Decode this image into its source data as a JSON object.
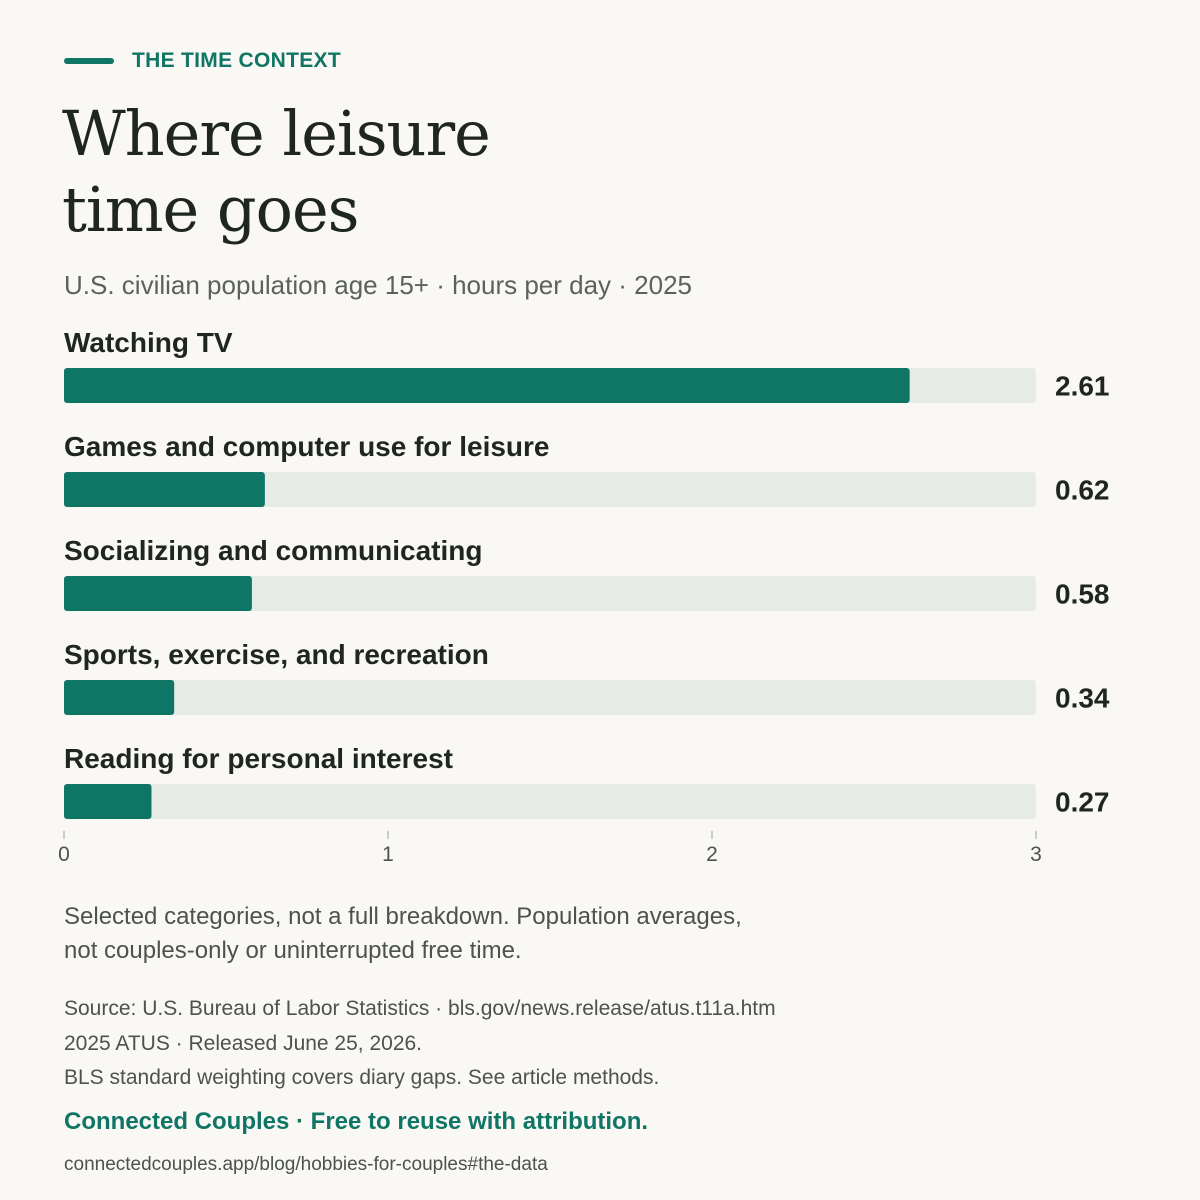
{
  "header": {
    "eyebrow": "THE TIME CONTEXT",
    "title_line1": "Where leisure",
    "title_line2": "time goes",
    "subtitle": "U.S. civilian population age 15+ · hours per day · 2025"
  },
  "colors": {
    "accent": "#0f7565",
    "track": "#e7ebe6",
    "background": "#f9f8f4",
    "text": "#1f2620",
    "muted": "#4c524d"
  },
  "chart_data": {
    "type": "bar",
    "orientation": "horizontal",
    "categories": [
      "Watching TV",
      "Games and computer use for leisure",
      "Socializing and communicating",
      "Sports, exercise, and recreation",
      "Reading for personal interest"
    ],
    "values": [
      2.61,
      0.62,
      0.58,
      0.34,
      0.27
    ],
    "value_labels": [
      "2.61",
      "0.62",
      "0.58",
      "0.34",
      "0.27"
    ],
    "xlim": [
      0,
      3
    ],
    "xticks": [
      0,
      1,
      2,
      3
    ],
    "xtick_labels": [
      "0",
      "1",
      "2",
      "3"
    ],
    "grid": false
  },
  "footer": {
    "note_line1": "Selected categories, not a full breakdown. Population averages,",
    "note_line2": "not couples-only or uninterrupted free time.",
    "source_line1": "Source: U.S. Bureau of Labor Statistics · bls.gov/news.release/atus.t11a.htm",
    "source_line2": "2025 ATUS · Released June 25, 2026.",
    "source_line3": "BLS standard weighting covers diary gaps. See article methods.",
    "brand": "Connected Couples · Free to reuse with attribution.",
    "url": "connectedcouples.app/blog/hobbies-for-couples#the-data"
  }
}
